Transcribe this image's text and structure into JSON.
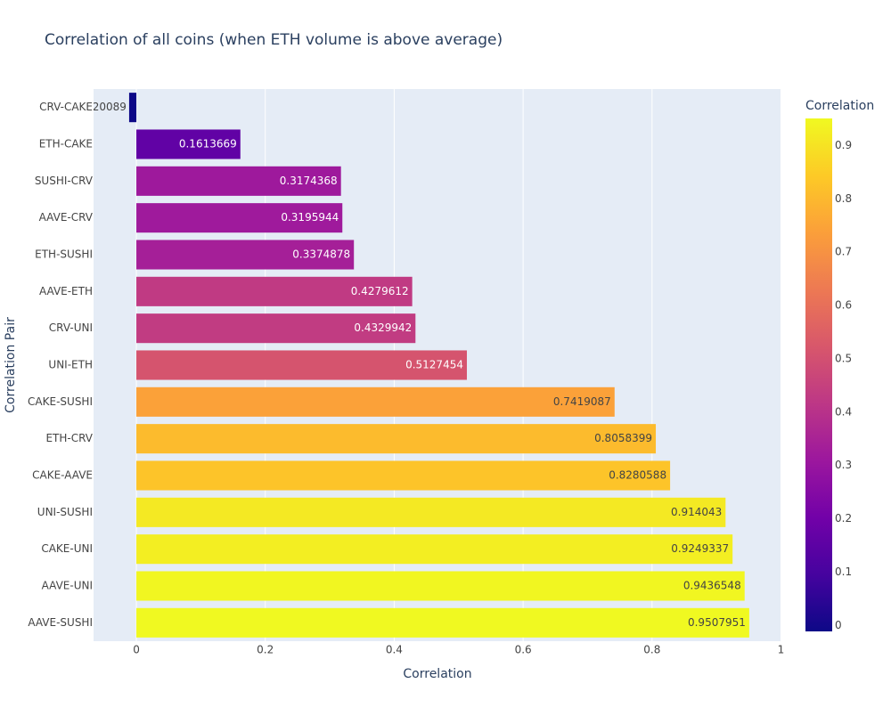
{
  "chart_data": {
    "type": "bar",
    "orientation": "horizontal",
    "title": "Correlation of all coins (when ETH volume is above average)",
    "x_label": "Correlation",
    "y_label": "Correlation Pair",
    "categories": [
      "AAVE-SUSHI",
      "AAVE-UNI",
      "CAKE-UNI",
      "UNI-SUSHI",
      "CAKE-AAVE",
      "ETH-CRV",
      "CAKE-SUSHI",
      "UNI-ETH",
      "CRV-UNI",
      "AAVE-ETH",
      "ETH-SUSHI",
      "AAVE-CRV",
      "SUSHI-CRV",
      "ETH-CAKE",
      "CRV-CAKE"
    ],
    "values": [
      0.9507951,
      0.9436548,
      0.9249337,
      0.914043,
      0.8280588,
      0.8058399,
      0.7419087,
      0.5127454,
      0.4329942,
      0.4279612,
      0.3374878,
      0.3195944,
      0.3174368,
      0.1613669,
      -0.01120089
    ],
    "xlim": [
      -0.0664,
      1.0007
    ],
    "xticks": [
      0,
      0.2,
      0.4,
      0.6,
      0.8,
      1
    ],
    "grid": true,
    "colorscale": [
      "#0d0887",
      "#46039f",
      "#7201a8",
      "#9c179e",
      "#bd3786",
      "#d8576b",
      "#ed7953",
      "#fb9f3a",
      "#fdca26",
      "#f0f921"
    ],
    "colorbar_title": "Correlation",
    "colorbar_ticks": [
      0,
      0.1,
      0.2,
      0.3,
      0.4,
      0.5,
      0.6,
      0.7,
      0.8,
      0.9
    ]
  }
}
